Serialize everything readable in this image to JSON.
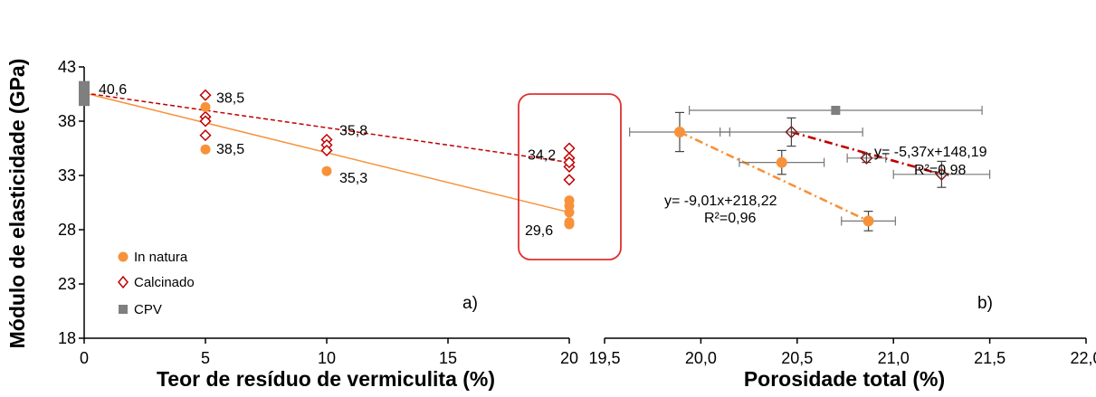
{
  "chart_data": [
    {
      "type": "scatter",
      "panel_label": "a)",
      "xlabel": "Teor de resíduo de vermiculita (%)",
      "ylabel": "Módulo de elasticidade (GPa)",
      "xlim": [
        0,
        20
      ],
      "ylim": [
        18,
        43
      ],
      "xticks": [
        "0",
        "5",
        "10",
        "15",
        "20"
      ],
      "yticks": [
        "18",
        "23",
        "28",
        "33",
        "38",
        "43"
      ],
      "grid": false,
      "legend_position": "bottom-left",
      "colors": {
        "in_natura": "#f7923a",
        "calcinado": "#c00000",
        "cpv": "#7f7f7f",
        "highlight_box": "#e03030"
      },
      "series": [
        {
          "name": "In natura",
          "marker": "filled-circle",
          "x": [
            5,
            5,
            10,
            20,
            20,
            20,
            20,
            20
          ],
          "y": [
            35.4,
            39.3,
            33.4,
            28.5,
            29.6,
            30.2,
            30.7,
            28.7
          ],
          "trendline": {
            "x": [
              0,
              20
            ],
            "y": [
              40.6,
              29.6
            ],
            "style": "solid"
          }
        },
        {
          "name": "Calcinado",
          "marker": "open-diamond",
          "x": [
            5,
            5,
            5,
            5,
            10,
            10,
            10,
            20,
            20,
            20,
            20,
            20
          ],
          "y": [
            40.4,
            38.4,
            38.0,
            36.7,
            36.3,
            35.8,
            35.3,
            35.5,
            34.6,
            33.8,
            32.6,
            34.2
          ],
          "trendline": {
            "x": [
              0,
              20
            ],
            "y": [
              40.6,
              34.2
            ],
            "style": "dashed"
          }
        },
        {
          "name": "CPV",
          "marker": "filled-square",
          "x": [
            0,
            0,
            0
          ],
          "y": [
            39.9,
            40.6,
            41.2
          ]
        }
      ],
      "annotations": [
        {
          "text": "40,6",
          "x": 0,
          "y": 40.6
        },
        {
          "text": "38,5",
          "x": 5,
          "y": 39.3
        },
        {
          "text": "38,5",
          "x": 5,
          "y": 35.4
        },
        {
          "text": "35,8",
          "x": 10,
          "y": 36.3
        },
        {
          "text": "35,3",
          "x": 10,
          "y": 33.4
        },
        {
          "text": "34,2",
          "x": 20,
          "y": 34.2
        },
        {
          "text": "29,6",
          "x": 20,
          "y": 28.5
        }
      ]
    },
    {
      "type": "scatter",
      "panel_label": "b)",
      "xlabel": "Porosidade total (%)",
      "xlim": [
        19.5,
        22.0
      ],
      "xticks": [
        "19,5",
        "20,0",
        "20,5",
        "21,0",
        "21,5",
        "22,0"
      ],
      "ylim": [
        18,
        43
      ],
      "grid": false,
      "series": [
        {
          "name": "In natura",
          "marker": "filled-circle",
          "points": [
            {
              "x": 19.89,
              "y": 37.0,
              "xerr": 0.26,
              "yerr": 1.8
            },
            {
              "x": 20.42,
              "y": 34.2,
              "xerr": 0.22,
              "yerr": 1.1
            },
            {
              "x": 20.87,
              "y": 28.8,
              "xerr": 0.14,
              "yerr": 0.9
            }
          ],
          "trendline": {
            "x": [
              19.89,
              20.87
            ],
            "y": [
              37.0,
              28.8
            ],
            "style": "dash-dot"
          },
          "equation": "y= -9,01x+218,22",
          "r2": "R²=0,96"
        },
        {
          "name": "Calcinado",
          "marker": "open-diamond",
          "points": [
            {
              "x": 20.47,
              "y": 37.0,
              "xerr": 0.37,
              "yerr": 1.3
            },
            {
              "x": 20.86,
              "y": 34.6,
              "xerr": 0.1,
              "yerr": 0.4
            },
            {
              "x": 21.25,
              "y": 33.1,
              "xerr": 0.25,
              "yerr": 1.2
            }
          ],
          "trendline": {
            "x": [
              20.47,
              21.25
            ],
            "y": [
              37.0,
              33.1
            ],
            "style": "dash-dot"
          },
          "equation": "y= -5,37x+148,19",
          "r2": "R²=0,98"
        },
        {
          "name": "CPV",
          "marker": "filled-square",
          "points": [
            {
              "x": 20.7,
              "y": 39.0,
              "xerr": 0.76,
              "yerr": 0
            }
          ]
        }
      ]
    }
  ]
}
